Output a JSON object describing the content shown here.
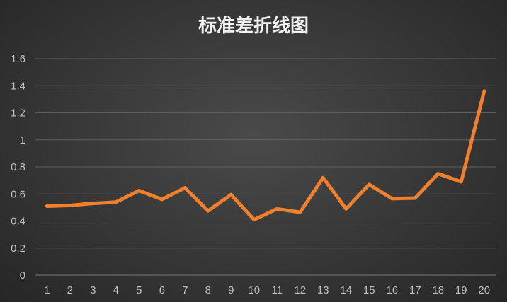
{
  "chart_data": {
    "type": "line",
    "title": "标准差折线图",
    "xlabel": "",
    "ylabel": "",
    "categories": [
      "1",
      "2",
      "3",
      "4",
      "5",
      "6",
      "7",
      "8",
      "9",
      "10",
      "11",
      "12",
      "13",
      "14",
      "15",
      "16",
      "17",
      "18",
      "19",
      "20"
    ],
    "series": [
      {
        "values": [
          0.51,
          0.515,
          0.53,
          0.54,
          0.625,
          0.56,
          0.645,
          0.475,
          0.595,
          0.41,
          0.49,
          0.465,
          0.72,
          0.49,
          0.67,
          0.565,
          0.57,
          0.75,
          0.69,
          1.36
        ]
      }
    ],
    "ylim": [
      0,
      1.6
    ],
    "yticks": [
      "0",
      "0.2",
      "0.4",
      "0.6",
      "0.8",
      "1",
      "1.2",
      "1.4",
      "1.6"
    ],
    "grid": true,
    "legend": "none",
    "colors": {
      "series": "#f07f2e",
      "background": "#333333"
    }
  }
}
